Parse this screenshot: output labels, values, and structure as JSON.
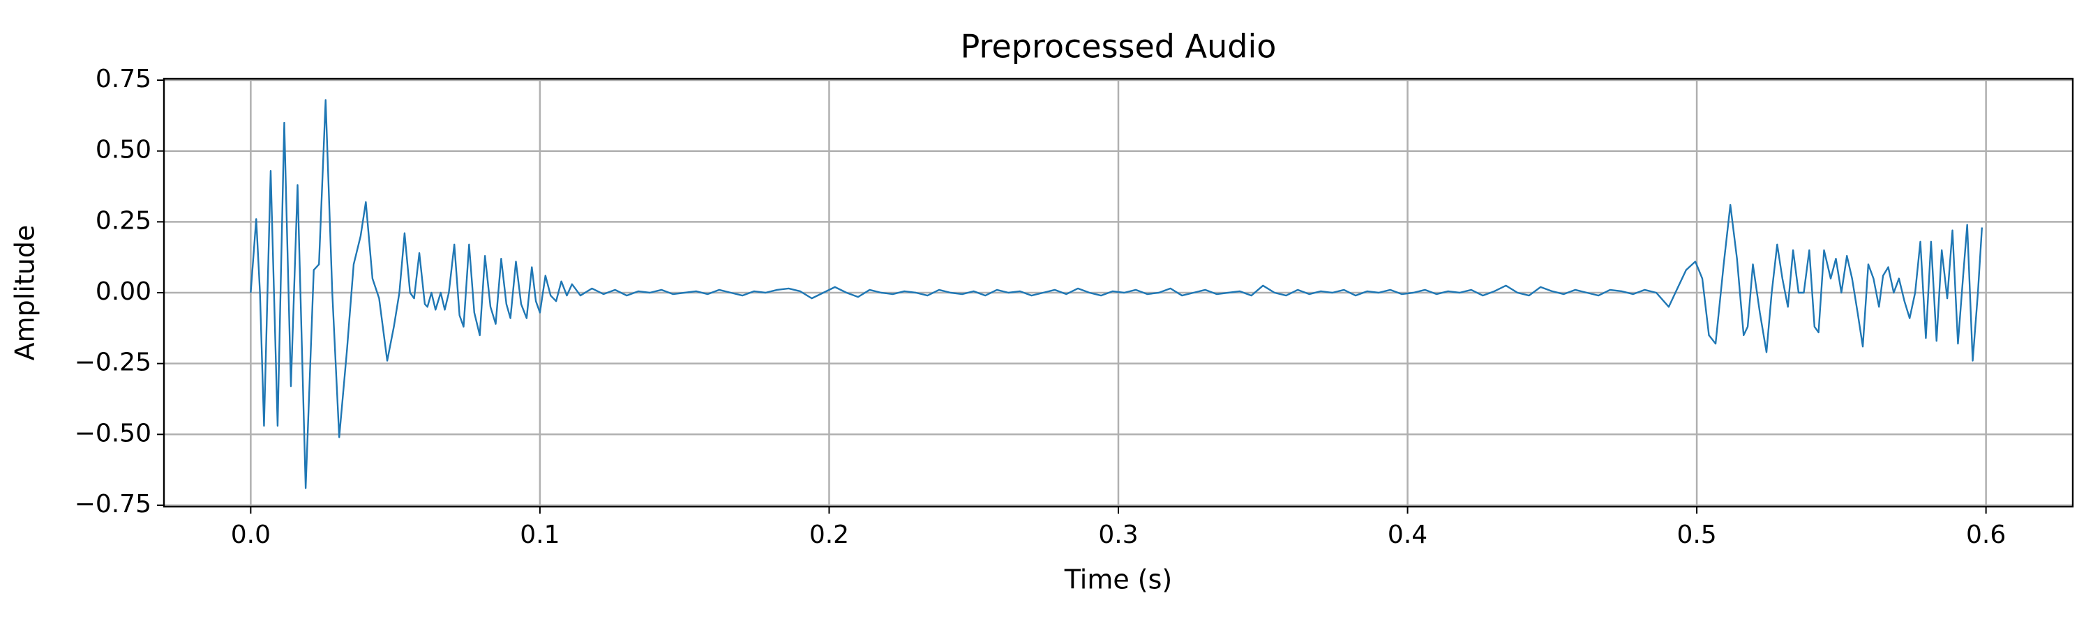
{
  "chart_data": {
    "type": "line",
    "title": "Preprocessed Audio",
    "xlabel": "Time (s)",
    "ylabel": "Amplitude",
    "color": "#1f77b4",
    "grid": true,
    "xlim": [
      -0.03,
      0.63
    ],
    "ylim": [
      -0.755,
      0.755
    ],
    "xticks": [
      {
        "value": 0,
        "label": "0.0"
      },
      0.1,
      0.2,
      0.3,
      0.4,
      0.5,
      0.6
    ],
    "yticks": [
      {
        "value": -0.75,
        "label": "−0.75"
      },
      {
        "value": -0.5,
        "label": "−0.50"
      },
      {
        "value": -0.25,
        "label": "−0.25"
      },
      {
        "value": 0,
        "label": "0.00"
      },
      0.25,
      {
        "value": 0.5,
        "label": "0.50"
      },
      0.75
    ],
    "x": [
      0,
      0.0019,
      0.0032,
      0.0046,
      0.0069,
      0.0093,
      0.0116,
      0.0139,
      0.0162,
      0.019,
      0.0218,
      0.0236,
      0.0259,
      0.0282,
      0.0306,
      0.0333,
      0.0356,
      0.038,
      0.0398,
      0.0421,
      0.0444,
      0.0472,
      0.0495,
      0.0514,
      0.0532,
      0.0551,
      0.0565,
      0.0583,
      0.0602,
      0.0611,
      0.0625,
      0.0639,
      0.0657,
      0.0671,
      0.0685,
      0.0704,
      0.0722,
      0.0736,
      0.0755,
      0.0773,
      0.0792,
      0.081,
      0.0829,
      0.0847,
      0.0866,
      0.0884,
      0.0898,
      0.0917,
      0.0935,
      0.0954,
      0.0972,
      0.0986,
      0.1,
      0.1019,
      0.1037,
      0.1056,
      0.1074,
      0.1093,
      0.1111,
      0.114,
      0.118,
      0.122,
      0.126,
      0.13,
      0.134,
      0.138,
      0.142,
      0.146,
      0.15,
      0.154,
      0.158,
      0.162,
      0.166,
      0.17,
      0.174,
      0.178,
      0.182,
      0.186,
      0.19,
      0.194,
      0.198,
      0.202,
      0.206,
      0.21,
      0.214,
      0.218,
      0.222,
      0.226,
      0.23,
      0.234,
      0.238,
      0.242,
      0.246,
      0.25,
      0.254,
      0.258,
      0.262,
      0.266,
      0.27,
      0.274,
      0.278,
      0.282,
      0.286,
      0.29,
      0.294,
      0.298,
      0.302,
      0.306,
      0.31,
      0.314,
      0.318,
      0.322,
      0.326,
      0.33,
      0.334,
      0.338,
      0.342,
      0.346,
      0.35,
      0.354,
      0.358,
      0.362,
      0.366,
      0.37,
      0.374,
      0.378,
      0.382,
      0.386,
      0.39,
      0.394,
      0.398,
      0.402,
      0.406,
      0.41,
      0.414,
      0.418,
      0.422,
      0.426,
      0.43,
      0.434,
      0.438,
      0.442,
      0.446,
      0.45,
      0.454,
      0.458,
      0.462,
      0.466,
      0.47,
      0.474,
      0.478,
      0.482,
      0.486,
      0.4903,
      0.4926,
      0.4963,
      0.4995,
      0.5019,
      0.5042,
      0.5065,
      0.5093,
      0.5116,
      0.5139,
      0.5162,
      0.5176,
      0.5194,
      0.5218,
      0.5241,
      0.5259,
      0.5278,
      0.5296,
      0.5315,
      0.5333,
      0.5352,
      0.537,
      0.5389,
      0.5407,
      0.5421,
      0.544,
      0.5463,
      0.5481,
      0.55,
      0.5519,
      0.5537,
      0.5556,
      0.5574,
      0.5593,
      0.5611,
      0.563,
      0.5644,
      0.5662,
      0.5681,
      0.5699,
      0.5718,
      0.5736,
      0.5755,
      0.5773,
      0.5792,
      0.581,
      0.5829,
      0.5847,
      0.5866,
      0.5884,
      0.5903,
      0.5921,
      0.5935,
      0.5954,
      0.5972,
      0.5986
    ],
    "values": [
      0,
      0.26,
      0.0,
      -0.47,
      0.43,
      -0.47,
      0.6,
      -0.33,
      0.38,
      -0.69,
      0.08,
      0.1,
      0.68,
      0.0,
      -0.51,
      -0.2,
      0.1,
      0.2,
      0.32,
      0.05,
      -0.02,
      -0.24,
      -0.12,
      0.0,
      0.21,
      0.0,
      -0.02,
      0.14,
      -0.04,
      -0.05,
      0.0,
      -0.06,
      0.0,
      -0.06,
      0.0,
      0.17,
      -0.08,
      -0.12,
      0.17,
      -0.07,
      -0.15,
      0.13,
      -0.05,
      -0.11,
      0.12,
      -0.04,
      -0.09,
      0.11,
      -0.04,
      -0.09,
      0.09,
      -0.03,
      -0.07,
      0.06,
      -0.01,
      -0.03,
      0.04,
      -0.01,
      0.03,
      -0.01,
      0.015,
      -0.005,
      0.01,
      -0.01,
      0.005,
      0.0,
      0.01,
      -0.005,
      0.0,
      0.005,
      -0.005,
      0.01,
      0.0,
      -0.01,
      0.005,
      0.0,
      0.01,
      0.015,
      0.005,
      -0.02,
      0.0,
      0.02,
      0.0,
      -0.015,
      0.01,
      0.0,
      -0.005,
      0.005,
      0.0,
      -0.01,
      0.01,
      0.0,
      -0.005,
      0.005,
      -0.01,
      0.01,
      0.0,
      0.005,
      -0.01,
      0.0,
      0.01,
      -0.005,
      0.015,
      0.0,
      -0.01,
      0.005,
      0.0,
      0.01,
      -0.005,
      0.0,
      0.015,
      -0.01,
      0.0,
      0.01,
      -0.005,
      0.0,
      0.005,
      -0.01,
      0.025,
      0.0,
      -0.01,
      0.01,
      -0.005,
      0.005,
      0.0,
      0.01,
      -0.01,
      0.005,
      0.0,
      0.01,
      -0.005,
      0.0,
      0.01,
      -0.005,
      0.005,
      0.0,
      0.01,
      -0.01,
      0.005,
      0.025,
      0.0,
      -0.01,
      0.02,
      0.005,
      -0.005,
      0.01,
      0.0,
      -0.01,
      0.01,
      0.005,
      -0.005,
      0.01,
      0.0,
      -0.05,
      0.0,
      0.08,
      0.11,
      0.05,
      -0.15,
      -0.18,
      0.1,
      0.31,
      0.12,
      -0.15,
      -0.12,
      0.1,
      -0.07,
      -0.21,
      0.0,
      0.17,
      0.05,
      -0.05,
      0.15,
      0.0,
      0.0,
      0.15,
      -0.12,
      -0.14,
      0.15,
      0.05,
      0.12,
      0.0,
      0.13,
      0.05,
      -0.07,
      -0.19,
      0.1,
      0.05,
      -0.05,
      0.06,
      0.09,
      0.0,
      0.05,
      -0.03,
      -0.09,
      0.0,
      0.18,
      -0.16,
      0.18,
      -0.17,
      0.15,
      -0.02,
      0.22,
      -0.18,
      0.06,
      0.24,
      -0.24,
      0.0,
      0.23
    ]
  }
}
